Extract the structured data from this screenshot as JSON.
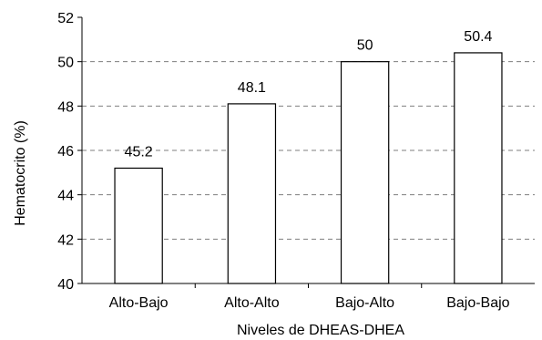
{
  "chart_data": {
    "type": "bar",
    "categories": [
      "Alto-Bajo",
      "Alto-Alto",
      "Bajo-Alto",
      "Bajo-Bajo"
    ],
    "values": [
      45.2,
      48.1,
      50,
      50.4
    ],
    "data_labels": [
      "45.2",
      "48.1",
      "50",
      "50.4"
    ],
    "title": "",
    "xlabel": "Niveles de DHEAS-DHEA",
    "ylabel": "Hematocrito (%)",
    "ylim": [
      40,
      52
    ],
    "yticks": [
      40,
      42,
      44,
      46,
      48,
      50,
      52
    ],
    "grid": true,
    "legend": "none",
    "colors": {
      "bar_fill": "#ffffff",
      "bar_stroke": "#000000",
      "grid": "#7f7f7f"
    }
  }
}
